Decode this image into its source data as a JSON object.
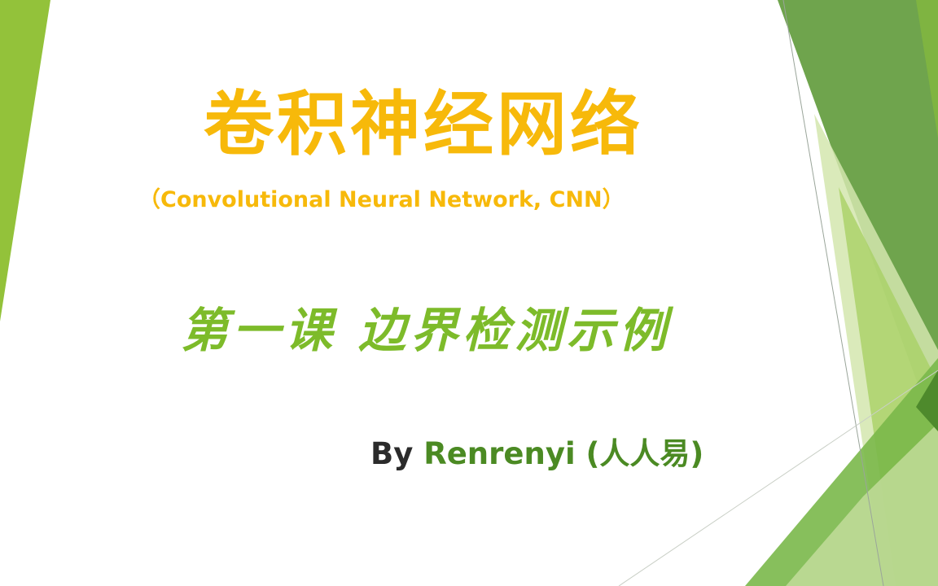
{
  "slide": {
    "title": "卷积神经网络",
    "subtitle": "（Convolutional Neural Network, CNN）",
    "lesson": "第一课 边界检测示例",
    "by_word": "By",
    "author": "Renrenyi (人人易)"
  },
  "colors": {
    "title": "#f7b90a",
    "lesson": "#7dbb2a",
    "by_word": "#2b2b2b",
    "author": "#4b8a23",
    "accent_light": "#a7cd45",
    "accent_dark": "#5c9a35",
    "accent_pale": "#d6e8b4"
  }
}
